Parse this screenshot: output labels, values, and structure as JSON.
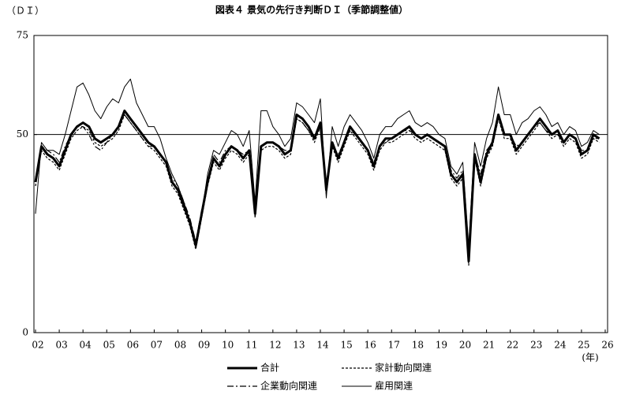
{
  "chart_data": {
    "type": "line",
    "title": "図表４ 景気の先行き判断ＤＩ（季節調整値）",
    "y_label": "（ＤＩ）",
    "x_unit": "(年)",
    "xlim": [
      2002,
      2026
    ],
    "xticks": [
      {
        "value": 2002,
        "label": "02"
      },
      {
        "value": 2003,
        "label": "03"
      },
      {
        "value": 2004,
        "label": "04"
      },
      {
        "value": 2005,
        "label": "05"
      },
      {
        "value": 2006,
        "label": "06"
      },
      {
        "value": 2007,
        "label": "07"
      },
      {
        "value": 2008,
        "label": "08"
      },
      {
        "value": 2009,
        "label": "09"
      },
      {
        "value": 2010,
        "label": "10"
      },
      {
        "value": 2011,
        "label": "11"
      },
      {
        "value": 2012,
        "label": "12"
      },
      {
        "value": 2013,
        "label": "13"
      },
      {
        "value": 2014,
        "label": "14"
      },
      {
        "value": 2015,
        "label": "15"
      },
      {
        "value": 2016,
        "label": "16"
      },
      {
        "value": 2017,
        "label": "17"
      },
      {
        "value": 2018,
        "label": "18"
      },
      {
        "value": 2019,
        "label": "19"
      },
      {
        "value": 2020,
        "label": "20"
      },
      {
        "value": 2021,
        "label": "21"
      },
      {
        "value": 2022,
        "label": "22"
      },
      {
        "value": 2023,
        "label": "23"
      },
      {
        "value": 2024,
        "label": "24"
      },
      {
        "value": 2025,
        "label": "25"
      },
      {
        "value": 2026,
        "label": "26"
      }
    ],
    "ylim": [
      0,
      75
    ],
    "yticks": [
      0,
      50,
      75
    ],
    "hline": 50,
    "x": [
      2002,
      2002.25,
      2002.5,
      2002.75,
      2003,
      2003.25,
      2003.5,
      2003.75,
      2004,
      2004.25,
      2004.5,
      2004.75,
      2005,
      2005.25,
      2005.5,
      2005.75,
      2006,
      2006.25,
      2006.5,
      2006.75,
      2007,
      2007.25,
      2007.5,
      2007.75,
      2008,
      2008.25,
      2008.5,
      2008.75,
      2009,
      2009.25,
      2009.5,
      2009.75,
      2010,
      2010.25,
      2010.5,
      2010.75,
      2011,
      2011.25,
      2011.5,
      2011.75,
      2012,
      2012.25,
      2012.5,
      2012.75,
      2013,
      2013.25,
      2013.5,
      2013.75,
      2014,
      2014.25,
      2014.5,
      2014.75,
      2015,
      2015.25,
      2015.5,
      2015.75,
      2016,
      2016.25,
      2016.5,
      2016.75,
      2017,
      2017.25,
      2017.5,
      2017.75,
      2018,
      2018.25,
      2018.5,
      2018.75,
      2019,
      2019.25,
      2019.5,
      2019.75,
      2020,
      2020.25,
      2020.5,
      2020.75,
      2021,
      2021.25,
      2021.5,
      2021.75,
      2022,
      2022.25,
      2022.5,
      2022.75,
      2023,
      2023.25,
      2023.5,
      2023.75,
      2024,
      2024.25,
      2024.5,
      2024.75,
      2025,
      2025.25,
      2025.5,
      2025.75
    ],
    "series": [
      {
        "name": "合計",
        "color": "#000000",
        "style": "solid",
        "width": 3,
        "values": [
          38,
          47,
          45,
          44,
          42,
          46,
          50,
          52,
          53,
          52,
          49,
          48,
          49,
          50,
          52,
          56,
          54,
          52,
          50,
          48,
          47,
          45,
          43,
          38,
          36,
          32,
          28,
          22,
          30,
          38,
          44,
          42,
          45,
          47,
          46,
          44,
          46,
          30,
          47,
          48,
          48,
          47,
          45,
          46,
          55,
          54,
          52,
          49,
          53,
          36,
          48,
          44,
          48,
          52,
          50,
          48,
          46,
          42,
          47,
          49,
          49,
          50,
          51,
          52,
          50,
          49,
          50,
          49,
          48,
          47,
          40,
          38,
          40,
          18,
          45,
          38,
          45,
          48,
          55,
          50,
          50,
          46,
          48,
          50,
          52,
          54,
          52,
          50,
          51,
          48,
          50,
          49,
          45,
          46,
          50,
          49
        ]
      },
      {
        "name": "家計動向関連",
        "color": "#000000",
        "style": "dashed",
        "width": 1.2,
        "values": [
          37,
          46,
          44,
          43,
          41,
          45,
          49,
          51,
          52,
          51,
          48,
          47,
          48,
          49,
          51,
          55,
          53,
          51,
          49,
          47,
          46,
          44,
          42,
          37,
          35,
          31,
          27,
          21,
          29,
          37,
          43,
          41,
          44,
          46,
          45,
          43,
          45,
          29,
          46,
          47,
          47,
          46,
          44,
          45,
          54,
          53,
          51,
          48,
          52,
          35,
          47,
          43,
          47,
          51,
          49,
          47,
          45,
          41,
          46,
          48,
          48,
          49,
          50,
          51,
          49,
          48,
          49,
          48,
          47,
          46,
          39,
          37,
          39,
          17,
          44,
          37,
          44,
          47,
          54,
          49,
          49,
          45,
          47,
          49,
          51,
          53,
          51,
          49,
          50,
          47,
          49,
          48,
          44,
          45,
          49,
          48
        ]
      },
      {
        "name": "企業動向関連",
        "color": "#000000",
        "style": "dashdot",
        "width": 1.2,
        "values": [
          39,
          47,
          46,
          45,
          43,
          47,
          50,
          52,
          52,
          50,
          47,
          46,
          48,
          50,
          52,
          55,
          53,
          51,
          49,
          47,
          47,
          45,
          43,
          39,
          37,
          33,
          29,
          23,
          31,
          38,
          45,
          43,
          46,
          47,
          46,
          45,
          46,
          32,
          47,
          48,
          48,
          47,
          46,
          46,
          54,
          53,
          51,
          49,
          52,
          38,
          47,
          45,
          48,
          51,
          50,
          48,
          46,
          43,
          47,
          48,
          49,
          50,
          51,
          51,
          50,
          49,
          50,
          49,
          48,
          47,
          41,
          39,
          41,
          20,
          45,
          40,
          46,
          48,
          54,
          50,
          50,
          47,
          48,
          50,
          52,
          53,
          51,
          50,
          50,
          48,
          50,
          49,
          46,
          46,
          49,
          49
        ]
      },
      {
        "name": "雇用関連",
        "color": "#000000",
        "style": "solid",
        "width": 1,
        "values": [
          30,
          48,
          46,
          46,
          45,
          50,
          56,
          62,
          63,
          60,
          56,
          54,
          57,
          59,
          58,
          62,
          64,
          58,
          55,
          52,
          52,
          49,
          44,
          40,
          37,
          33,
          28,
          22,
          30,
          40,
          46,
          45,
          48,
          51,
          50,
          47,
          51,
          33,
          56,
          56,
          52,
          50,
          47,
          49,
          58,
          57,
          55,
          53,
          59,
          34,
          52,
          47,
          52,
          55,
          53,
          51,
          48,
          44,
          50,
          52,
          52,
          54,
          55,
          56,
          53,
          52,
          53,
          52,
          50,
          49,
          42,
          40,
          43,
          22,
          48,
          42,
          49,
          53,
          62,
          55,
          55,
          50,
          53,
          54,
          56,
          57,
          55,
          52,
          53,
          50,
          52,
          51,
          47,
          48,
          51,
          50
        ]
      }
    ]
  }
}
